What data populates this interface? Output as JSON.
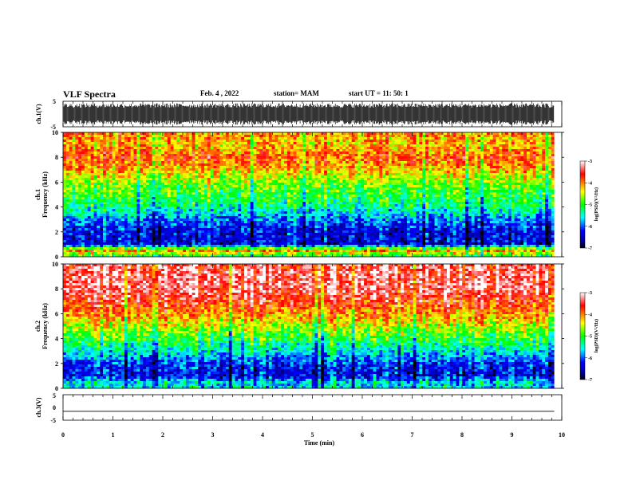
{
  "header": {
    "title": "VLF Spectra",
    "date": "Feb. 4 , 2022",
    "station": "station= MAM",
    "start": "start UT = 11: 50: 1"
  },
  "chart_data": [
    {
      "type": "line",
      "panel": "ch1-waveform",
      "ylabel": "ch.1(V)",
      "ylim": [
        -5,
        5
      ],
      "yticks": [
        "5",
        "-5"
      ],
      "description_values": "dense waveform oscillating roughly between -4 and +4 V across 0–9.85 min"
    },
    {
      "type": "heatmap",
      "panel": "ch1-spectrogram",
      "ylabel": "ch.1\nFrequency (kHz)",
      "ylim": [
        0,
        10
      ],
      "yticks": [
        "0",
        "2",
        "4",
        "6",
        "8",
        "10"
      ],
      "x_range_data": [
        0,
        9.85
      ],
      "colorbar": {
        "label": "log(PSD)(V²/Hz)",
        "range": [
          -7,
          -3
        ],
        "ticks": [
          "-3",
          "-4",
          "-5",
          "-6",
          "-7"
        ]
      },
      "profile_freq_khz": [
        0,
        0.5,
        1,
        2,
        3,
        4,
        5,
        6,
        7,
        8,
        9,
        10
      ],
      "profile_log_psd": [
        -5.2,
        -4.0,
        -6.4,
        -6.3,
        -5.9,
        -5.3,
        -5.0,
        -4.7,
        -4.2,
        -3.8,
        -4.2,
        -4.0
      ]
    },
    {
      "type": "heatmap",
      "panel": "ch2-spectrogram",
      "ylabel": "ch.2\nFrequency (kHz)",
      "ylim": [
        0,
        10
      ],
      "yticks": [
        "0",
        "2",
        "4",
        "6",
        "8",
        "10"
      ],
      "x_range_data": [
        0,
        9.85
      ],
      "colorbar": {
        "label": "log(PSD)(V²/Hz)",
        "range": [
          -7,
          -3
        ],
        "ticks": [
          "-3",
          "-4",
          "-5",
          "-6",
          "-7"
        ]
      },
      "profile_freq_khz": [
        0,
        0.5,
        1,
        2,
        3,
        4,
        5,
        6,
        7,
        8,
        9,
        10
      ],
      "profile_log_psd": [
        -5.5,
        -5.6,
        -6.3,
        -6.1,
        -5.5,
        -5.0,
        -4.5,
        -4.0,
        -3.6,
        -3.3,
        -3.3,
        -3.4
      ]
    },
    {
      "type": "line",
      "panel": "ch3-waveform",
      "ylabel": "ch.3(V)",
      "ylim": [
        -5,
        5
      ],
      "yticks": [
        "5",
        "0",
        "-5"
      ],
      "x": [
        0,
        9.85
      ],
      "values": [
        -1.5,
        -1.5
      ]
    }
  ],
  "xaxis": {
    "label": "Time (min)",
    "range": [
      0,
      10
    ],
    "ticks": [
      "0",
      "1",
      "2",
      "3",
      "4",
      "5",
      "6",
      "7",
      "8",
      "9",
      "10"
    ]
  }
}
